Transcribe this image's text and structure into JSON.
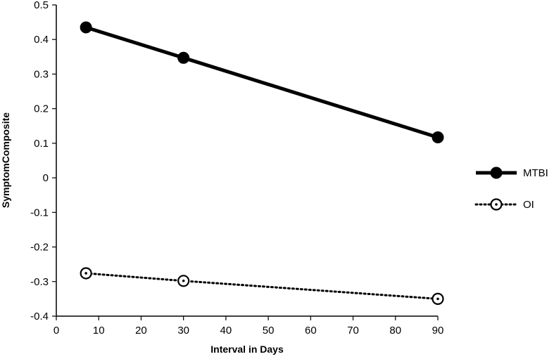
{
  "chart_data": {
    "type": "line",
    "xlabel": "Interval in Days",
    "ylabel": "SymptomComposite",
    "xlim": [
      0,
      90
    ],
    "ylim": [
      -0.4,
      0.5
    ],
    "x_ticks": [
      "0",
      "10",
      "20",
      "30",
      "40",
      "50",
      "60",
      "70",
      "80",
      "90"
    ],
    "y_ticks": [
      "0.5",
      "0.4",
      "0.3",
      "0.2",
      "0.1",
      "0",
      "-0.1",
      "-0.2",
      "-0.3",
      "-0.4"
    ],
    "grid": false,
    "legend_position": "right",
    "series": [
      {
        "name": "MTBI",
        "x": [
          7,
          30,
          90
        ],
        "y": [
          0.435,
          0.347,
          0.117
        ],
        "line_style": "solid",
        "marker": "filled-circle",
        "color": "#000000"
      },
      {
        "name": "OI",
        "x": [
          7,
          30,
          90
        ],
        "y": [
          -0.276,
          -0.298,
          -0.35
        ],
        "line_style": "dotted",
        "marker": "open-circle-dot",
        "color": "#000000"
      }
    ]
  }
}
